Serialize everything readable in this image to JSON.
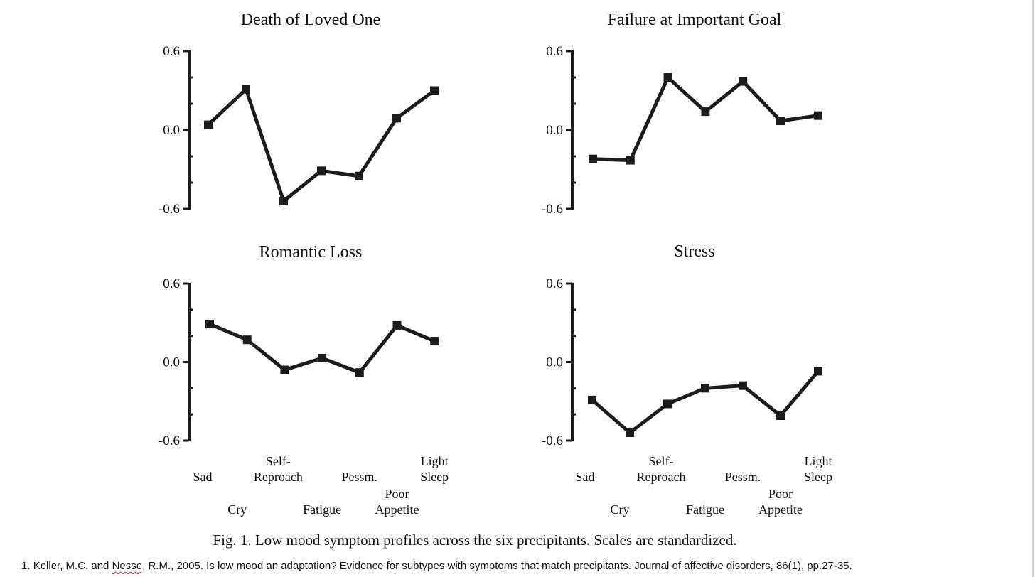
{
  "chart_data": [
    {
      "type": "line",
      "title": "Death of Loved One",
      "categories": [
        "Sad",
        "Cry",
        "Self-Reproach",
        "Fatigue",
        "Pessm.",
        "Poor Appetite",
        "Light Sleep"
      ],
      "values": [
        0.04,
        0.31,
        -0.54,
        -0.31,
        -0.35,
        0.09,
        0.3
      ],
      "ylim": [
        -0.6,
        0.6
      ],
      "yticks": [
        "0.6",
        "0.0",
        "-0.6"
      ],
      "grid": false
    },
    {
      "type": "line",
      "title": "Failure at Important Goal",
      "categories": [
        "Sad",
        "Cry",
        "Self-Reproach",
        "Fatigue",
        "Pessm.",
        "Poor Appetite",
        "Light Sleep"
      ],
      "values": [
        -0.22,
        -0.23,
        0.4,
        0.14,
        0.37,
        0.07,
        0.11
      ],
      "ylim": [
        -0.6,
        0.6
      ],
      "yticks": [
        "0.6",
        "0.0",
        "-0.6"
      ],
      "grid": false
    },
    {
      "type": "line",
      "title": "Romantic Loss",
      "categories": [
        "Sad",
        "Cry",
        "Self-Reproach",
        "Fatigue",
        "Pessm.",
        "Poor Appetite",
        "Light Sleep"
      ],
      "values": [
        0.29,
        0.17,
        -0.06,
        0.03,
        -0.08,
        0.28,
        0.16
      ],
      "ylim": [
        -0.6,
        0.6
      ],
      "yticks": [
        "0.6",
        "0.0",
        "-0.6"
      ],
      "grid": false
    },
    {
      "type": "line",
      "title": "Stress",
      "categories": [
        "Sad",
        "Cry",
        "Self-Reproach",
        "Fatigue",
        "Pessm.",
        "Poor Appetite",
        "Light Sleep"
      ],
      "values": [
        -0.29,
        -0.54,
        -0.32,
        -0.2,
        -0.18,
        -0.41,
        -0.07
      ],
      "ylim": [
        -0.6,
        0.6
      ],
      "yticks": [
        "0.6",
        "0.0",
        "-0.6"
      ],
      "grid": false
    }
  ],
  "category_labels": [
    {
      "lines": [
        "Sad"
      ]
    },
    {
      "lines": [
        "Cry"
      ]
    },
    {
      "lines": [
        "Self-",
        "Reproach"
      ]
    },
    {
      "lines": [
        "Fatigue"
      ]
    },
    {
      "lines": [
        "Pessm."
      ]
    },
    {
      "lines": [
        "Poor",
        "Appetite"
      ]
    },
    {
      "lines": [
        "Light",
        "Sleep"
      ]
    }
  ],
  "caption": "Fig. 1. Low mood symptom profiles across the six precipitants. Scales are standardized.",
  "reference": {
    "number": "1.",
    "author_1": "Keller, M.C. and",
    "author_2": "Nesse",
    "rest": ", R.M., 2005. Is low mood an adaptation? Evidence for subtypes with symptoms that match precipitants. Journal of affective disorders, 86(1), pp.27-35."
  },
  "colors": {
    "line": "#1c1c1c",
    "text": "#111111",
    "frame": "#cfcfcf"
  }
}
